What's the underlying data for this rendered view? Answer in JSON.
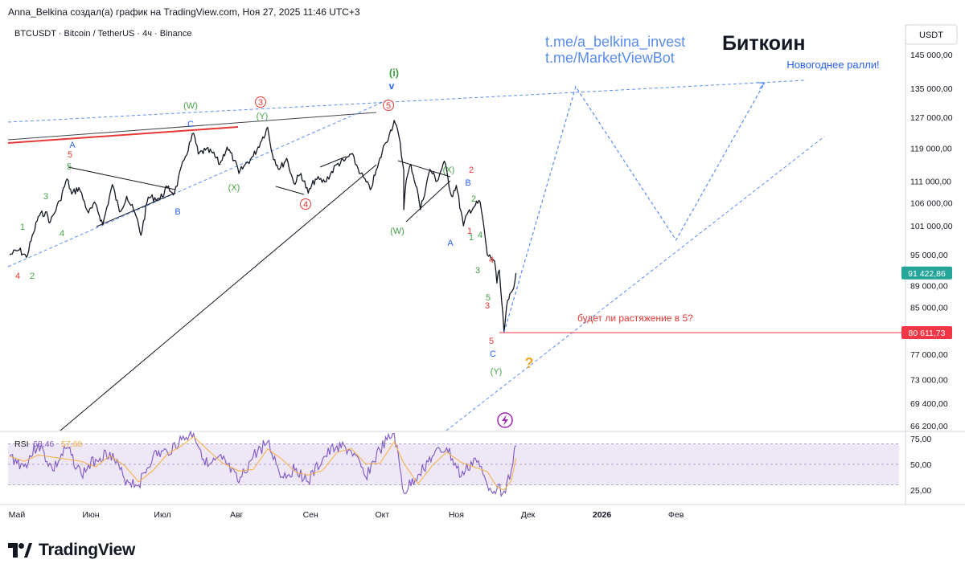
{
  "header": {
    "attribution": "Anna_Belkina создал(а) график на TradingView.com, Ноя 27, 2025 11:46 UTC+3"
  },
  "footer": {
    "brand": "TradingView"
  },
  "chart_data": {
    "type": "line",
    "title": "Биткоин",
    "symbol": "BTCUSDT · Bitcoin / TetherUS · 4ч · Binance",
    "currency": "USDT",
    "links": [
      "t.me/a_belkina_invest",
      "t.me/MarketViewBot"
    ],
    "y_axis": {
      "ticks": [
        "145 000,00",
        "135 000,00",
        "127 000,00",
        "119 000,00",
        "111 000,00",
        "106 000,00",
        "101 000,00",
        "95 000,00",
        "89 000,00",
        "85 000,00",
        "77 000,00",
        "73 000,00",
        "69 400,00",
        "66 200,00"
      ],
      "scale": "log"
    },
    "x_axis": {
      "ticks": [
        "Май",
        "Июн",
        "Июл",
        "Авг",
        "Сен",
        "Окт",
        "Ноя",
        "Дек",
        "2026",
        "Фев"
      ]
    },
    "price_labels": [
      {
        "value": "91 422,86",
        "color": "#26a69a"
      },
      {
        "value": "80 611,73",
        "color": "#f23645"
      }
    ],
    "horizontal_level": 80611.73,
    "price_path": [
      [
        "2025-04-28",
        95000
      ],
      [
        "2025-05-02",
        96000
      ],
      [
        "2025-05-05",
        94500
      ],
      [
        "2025-05-08",
        99500
      ],
      [
        "2025-05-10",
        103000
      ],
      [
        "2025-05-13",
        104000
      ],
      [
        "2025-05-15",
        101800
      ],
      [
        "2025-05-19",
        106500
      ],
      [
        "2025-05-22",
        111500
      ],
      [
        "2025-05-24",
        108000
      ],
      [
        "2025-05-27",
        109500
      ],
      [
        "2025-05-31",
        103800
      ],
      [
        "2025-06-03",
        105800
      ],
      [
        "2025-06-06",
        101200
      ],
      [
        "2025-06-10",
        110200
      ],
      [
        "2025-06-13",
        104000
      ],
      [
        "2025-06-16",
        107500
      ],
      [
        "2025-06-20",
        103000
      ],
      [
        "2025-06-22",
        99000
      ],
      [
        "2025-06-25",
        107300
      ],
      [
        "2025-06-30",
        107000
      ],
      [
        "2025-07-03",
        109500
      ],
      [
        "2025-07-06",
        108200
      ],
      [
        "2025-07-10",
        116000
      ],
      [
        "2025-07-14",
        122800
      ],
      [
        "2025-07-16",
        117500
      ],
      [
        "2025-07-19",
        118500
      ],
      [
        "2025-07-22",
        117800
      ],
      [
        "2025-07-25",
        115000
      ],
      [
        "2025-07-28",
        119300
      ],
      [
        "2025-07-31",
        116000
      ],
      [
        "2025-08-02",
        112800
      ],
      [
        "2025-08-04",
        114500
      ],
      [
        "2025-08-08",
        117000
      ],
      [
        "2025-08-11",
        120500
      ],
      [
        "2025-08-14",
        124400
      ],
      [
        "2025-08-16",
        117500
      ],
      [
        "2025-08-19",
        113800
      ],
      [
        "2025-08-22",
        116500
      ],
      [
        "2025-08-25",
        110500
      ],
      [
        "2025-08-28",
        112800
      ],
      [
        "2025-08-31",
        108200
      ],
      [
        "2025-09-03",
        111500
      ],
      [
        "2025-09-07",
        110800
      ],
      [
        "2025-09-12",
        115000
      ],
      [
        "2025-09-15",
        115800
      ],
      [
        "2025-09-18",
        117500
      ],
      [
        "2025-09-22",
        112800
      ],
      [
        "2025-09-26",
        109000
      ],
      [
        "2025-09-29",
        114200
      ],
      [
        "2025-10-02",
        120000
      ],
      [
        "2025-10-04",
        122500
      ],
      [
        "2025-10-06",
        126200
      ],
      [
        "2025-10-08",
        122000
      ],
      [
        "2025-10-10",
        113500
      ],
      [
        "2025-10-10",
        104500
      ],
      [
        "2025-10-11",
        111000
      ],
      [
        "2025-10-13",
        115000
      ],
      [
        "2025-10-16",
        108000
      ],
      [
        "2025-10-17",
        104500
      ],
      [
        "2025-10-21",
        113800
      ],
      [
        "2025-10-24",
        111000
      ],
      [
        "2025-10-27",
        115800
      ],
      [
        "2025-10-30",
        107500
      ],
      [
        "2025-11-01",
        110000
      ],
      [
        "2025-11-04",
        101000
      ],
      [
        "2025-11-06",
        104000
      ],
      [
        "2025-11-09",
        105500
      ],
      [
        "2025-11-11",
        106200
      ],
      [
        "2025-11-13",
        99000
      ],
      [
        "2025-11-14",
        95000
      ],
      [
        "2025-11-17",
        93800
      ],
      [
        "2025-11-18",
        89500
      ],
      [
        "2025-11-19",
        92000
      ],
      [
        "2025-11-21",
        80611.73
      ],
      [
        "2025-11-22",
        85000
      ],
      [
        "2025-11-23",
        86500
      ],
      [
        "2025-11-25",
        88500
      ],
      [
        "2025-11-26",
        91422.86
      ]
    ],
    "projection_path": [
      [
        "2025-11-21",
        80611.73
      ],
      [
        "2025-12-21",
        135500
      ],
      [
        "2026-02-01",
        98000
      ],
      [
        "2026-03-10",
        136500
      ]
    ],
    "rsi": {
      "label": "RSI",
      "values_label": [
        "68,46",
        "57,68"
      ],
      "ticks": [
        "75,00",
        "50,00",
        "25,00"
      ],
      "band": [
        30,
        70
      ],
      "path": [
        [
          "2025-04-28",
          58
        ],
        [
          "2025-05-04",
          48
        ],
        [
          "2025-05-10",
          70
        ],
        [
          "2025-05-16",
          44
        ],
        [
          "2025-05-22",
          66
        ],
        [
          "2025-05-28",
          40
        ],
        [
          "2025-06-03",
          55
        ],
        [
          "2025-06-09",
          62
        ],
        [
          "2025-06-15",
          36
        ],
        [
          "2025-06-21",
          30
        ],
        [
          "2025-06-27",
          58
        ],
        [
          "2025-07-03",
          62
        ],
        [
          "2025-07-09",
          74
        ],
        [
          "2025-07-14",
          80
        ],
        [
          "2025-07-20",
          48
        ],
        [
          "2025-07-26",
          55
        ],
        [
          "2025-08-02",
          32
        ],
        [
          "2025-08-08",
          58
        ],
        [
          "2025-08-14",
          72
        ],
        [
          "2025-08-20",
          38
        ],
        [
          "2025-08-26",
          46
        ],
        [
          "2025-08-31",
          33
        ],
        [
          "2025-09-06",
          55
        ],
        [
          "2025-09-12",
          68
        ],
        [
          "2025-09-18",
          63
        ],
        [
          "2025-09-24",
          38
        ],
        [
          "2025-09-30",
          64
        ],
        [
          "2025-10-06",
          80
        ],
        [
          "2025-10-10",
          22
        ],
        [
          "2025-10-16",
          40
        ],
        [
          "2025-10-22",
          58
        ],
        [
          "2025-10-28",
          66
        ],
        [
          "2025-11-03",
          38
        ],
        [
          "2025-11-09",
          56
        ],
        [
          "2025-11-14",
          30
        ],
        [
          "2025-11-18",
          26
        ],
        [
          "2025-11-21",
          24
        ],
        [
          "2025-11-24",
          44
        ],
        [
          "2025-11-26",
          68.46
        ]
      ]
    },
    "annotations": [
      {
        "text": "Новогоднее ралли!",
        "color": "#2962ff"
      },
      {
        "text": "будет ли растяжение в 5?",
        "color": "#e53935"
      },
      {
        "text": "?",
        "color": "#f5a623"
      },
      {
        "text": "(i)",
        "color": "#43a047"
      },
      {
        "text": "v",
        "color": "#2962ff"
      },
      {
        "text": "(W)",
        "color": "#43a047"
      },
      {
        "text": "(Y)",
        "color": "#43a047"
      },
      {
        "text": "(X)",
        "color": "#43a047"
      },
      {
        "text": "(W)",
        "color": "#43a047"
      },
      {
        "text": "(X)",
        "color": "#43a047"
      },
      {
        "text": "(Y)",
        "color": "#43a047"
      },
      {
        "text": "3",
        "color": "#e53935"
      },
      {
        "text": "4",
        "color": "#e53935"
      },
      {
        "text": "5",
        "color": "#e53935"
      },
      {
        "text": "A",
        "color": "#2962ff"
      },
      {
        "text": "B",
        "color": "#2962ff"
      },
      {
        "text": "C",
        "color": "#2962ff"
      },
      {
        "text": "A",
        "color": "#2962ff"
      },
      {
        "text": "B",
        "color": "#2962ff"
      },
      {
        "text": "C",
        "color": "#2962ff"
      },
      {
        "text": "1",
        "color": "#43a047"
      },
      {
        "text": "2",
        "color": "#43a047"
      },
      {
        "text": "3",
        "color": "#43a047"
      },
      {
        "text": "4",
        "color": "#43a047"
      },
      {
        "text": "5",
        "color": "#43a047"
      },
      {
        "text": "4",
        "color": "#e53935"
      },
      {
        "text": "5",
        "color": "#e53935"
      },
      {
        "text": "1",
        "color": "#e53935"
      },
      {
        "text": "2",
        "color": "#e53935"
      },
      {
        "text": "1",
        "color": "#43a047"
      },
      {
        "text": "2",
        "color": "#43a047"
      },
      {
        "text": "3",
        "color": "#43a047"
      },
      {
        "text": "4",
        "color": "#43a047"
      },
      {
        "text": "4",
        "color": "#e53935"
      },
      {
        "text": "3",
        "color": "#e53935"
      },
      {
        "text": "5",
        "color": "#43a047"
      },
      {
        "text": "5",
        "color": "#e53935"
      }
    ],
    "colors": {
      "price": "#131722",
      "projection": "#5b8def",
      "rsi": "#7e57c2",
      "rsi_ma": "#f5b041",
      "rsi_band": "#ede7f6"
    }
  }
}
